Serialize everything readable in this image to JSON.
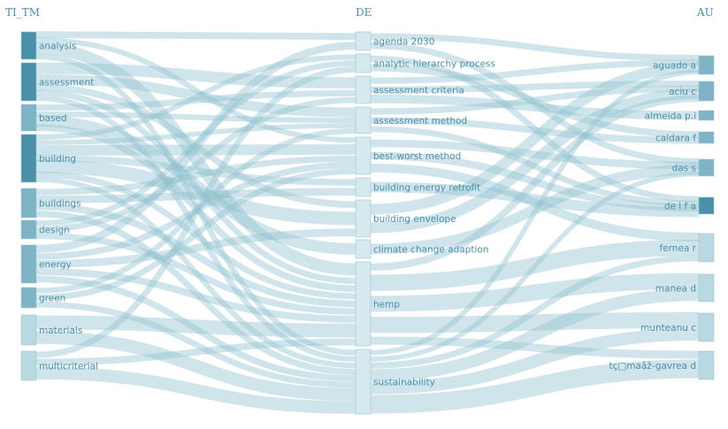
{
  "columns": {
    "left": "TI_TM",
    "middle": "DE",
    "right": "AU"
  },
  "colors": {
    "link": "#8fc1d0",
    "node_dark": "#4a90a8",
    "node_mid": "#7fb3c6",
    "node_light": "#b8d8e2",
    "node_pale": "#d6e9ef",
    "label": "#4a8fa8"
  },
  "nodes": {
    "left": [
      {
        "id": "analysis",
        "label": "analysis",
        "shade": "node_dark"
      },
      {
        "id": "assessment",
        "label": "assessment",
        "shade": "node_dark"
      },
      {
        "id": "based",
        "label": "based",
        "shade": "node_mid"
      },
      {
        "id": "building",
        "label": "building",
        "shade": "node_dark"
      },
      {
        "id": "buildings",
        "label": "buildings",
        "shade": "node_mid"
      },
      {
        "id": "design",
        "label": "design",
        "shade": "node_mid"
      },
      {
        "id": "energy",
        "label": "energy",
        "shade": "node_mid"
      },
      {
        "id": "green",
        "label": "green",
        "shade": "node_mid"
      },
      {
        "id": "materials",
        "label": "materials",
        "shade": "node_light"
      },
      {
        "id": "multicriterial",
        "label": "multicriterial",
        "shade": "node_light"
      }
    ],
    "middle": [
      {
        "id": "agenda",
        "label": "agenda 2030",
        "shade": "node_pale"
      },
      {
        "id": "ahp",
        "label": "analytic hierarchy process",
        "shade": "node_pale"
      },
      {
        "id": "crit",
        "label": "assessment criteria",
        "shade": "node_pale"
      },
      {
        "id": "meth",
        "label": "assessment method",
        "shade": "node_pale"
      },
      {
        "id": "bwm",
        "label": "best-worst method",
        "shade": "node_pale"
      },
      {
        "id": "retro",
        "label": "building energy retrofit",
        "shade": "node_pale"
      },
      {
        "id": "env",
        "label": "building envelope",
        "shade": "node_pale"
      },
      {
        "id": "climate",
        "label": "climate change adaption",
        "shade": "node_pale"
      },
      {
        "id": "hemp",
        "label": "hemp",
        "shade": "node_pale"
      },
      {
        "id": "sust",
        "label": "sustainability",
        "shade": "node_pale"
      }
    ],
    "right": [
      {
        "id": "aguado",
        "label": "aguado a",
        "shade": "node_mid"
      },
      {
        "id": "aciu",
        "label": "aciu c",
        "shade": "node_mid"
      },
      {
        "id": "almeida",
        "label": "almeida p.i",
        "shade": "node_mid"
      },
      {
        "id": "caldara",
        "label": "caldara f",
        "shade": "node_mid"
      },
      {
        "id": "das",
        "label": "das s",
        "shade": "node_mid"
      },
      {
        "id": "delfa",
        "label": "de l f a",
        "shade": "node_dark"
      },
      {
        "id": "fernea",
        "label": "fernea r",
        "shade": "node_light"
      },
      {
        "id": "manea",
        "label": "manea d",
        "shade": "node_light"
      },
      {
        "id": "munteanu",
        "label": "munteanu c",
        "shade": "node_light"
      },
      {
        "id": "tc",
        "label": "tç□maâž-gavrea d",
        "shade": "node_light"
      }
    ]
  },
  "links": [
    [
      "analysis",
      "agenda",
      1
    ],
    [
      "analysis",
      "bwm",
      1
    ],
    [
      "analysis",
      "hemp",
      2
    ],
    [
      "analysis",
      "sust",
      1
    ],
    [
      "assessment",
      "crit",
      2
    ],
    [
      "assessment",
      "meth",
      2
    ],
    [
      "assessment",
      "env",
      1
    ],
    [
      "assessment",
      "hemp",
      1
    ],
    [
      "assessment",
      "sust",
      1
    ],
    [
      "based",
      "crit",
      1
    ],
    [
      "based",
      "meth",
      1
    ],
    [
      "based",
      "climate",
      1
    ],
    [
      "based",
      "hemp",
      1
    ],
    [
      "building",
      "ahp",
      1
    ],
    [
      "building",
      "meth",
      1
    ],
    [
      "building",
      "bwm",
      2
    ],
    [
      "building",
      "retro",
      1
    ],
    [
      "building",
      "env",
      2
    ],
    [
      "building",
      "hemp",
      1
    ],
    [
      "building",
      "sust",
      1
    ],
    [
      "buildings",
      "bwm",
      1
    ],
    [
      "buildings",
      "retro",
      1
    ],
    [
      "buildings",
      "hemp",
      1
    ],
    [
      "buildings",
      "sust",
      1
    ],
    [
      "design",
      "ahp",
      1
    ],
    [
      "design",
      "crit",
      1
    ],
    [
      "design",
      "hemp",
      1
    ],
    [
      "energy",
      "agenda",
      1
    ],
    [
      "energy",
      "bwm",
      1
    ],
    [
      "energy",
      "env",
      1
    ],
    [
      "energy",
      "hemp",
      1
    ],
    [
      "energy",
      "sust",
      1
    ],
    [
      "green",
      "meth",
      1
    ],
    [
      "green",
      "bwm",
      1
    ],
    [
      "green",
      "sust",
      1
    ],
    [
      "materials",
      "hemp",
      2
    ],
    [
      "materials",
      "sust",
      2
    ],
    [
      "multicriterial",
      "ahp",
      1
    ],
    [
      "multicriterial",
      "hemp",
      1
    ],
    [
      "multicriterial",
      "sust",
      2
    ],
    [
      "agenda",
      "aguado",
      1
    ],
    [
      "agenda",
      "das",
      1
    ],
    [
      "ahp",
      "delfa",
      1
    ],
    [
      "ahp",
      "caldara",
      1
    ],
    [
      "crit",
      "aguado",
      1
    ],
    [
      "crit",
      "aciu",
      1
    ],
    [
      "crit",
      "almeida",
      1
    ],
    [
      "meth",
      "aciu",
      1
    ],
    [
      "meth",
      "caldara",
      1
    ],
    [
      "meth",
      "delfa",
      1
    ],
    [
      "bwm",
      "das",
      1
    ],
    [
      "bwm",
      "delfa",
      1
    ],
    [
      "bwm",
      "fernea",
      1
    ],
    [
      "retro",
      "delfa",
      1
    ],
    [
      "env",
      "aguado",
      1
    ],
    [
      "env",
      "aciu",
      1
    ],
    [
      "climate",
      "das",
      1
    ],
    [
      "hemp",
      "aciu",
      1
    ],
    [
      "hemp",
      "fernea",
      2
    ],
    [
      "hemp",
      "manea",
      2
    ],
    [
      "hemp",
      "munteanu",
      2
    ],
    [
      "hemp",
      "tc",
      1
    ],
    [
      "sust",
      "aguado",
      1
    ],
    [
      "sust",
      "das",
      1
    ],
    [
      "sust",
      "fernea",
      1
    ],
    [
      "sust",
      "manea",
      2
    ],
    [
      "sust",
      "munteanu",
      2
    ],
    [
      "sust",
      "tc",
      3
    ]
  ]
}
